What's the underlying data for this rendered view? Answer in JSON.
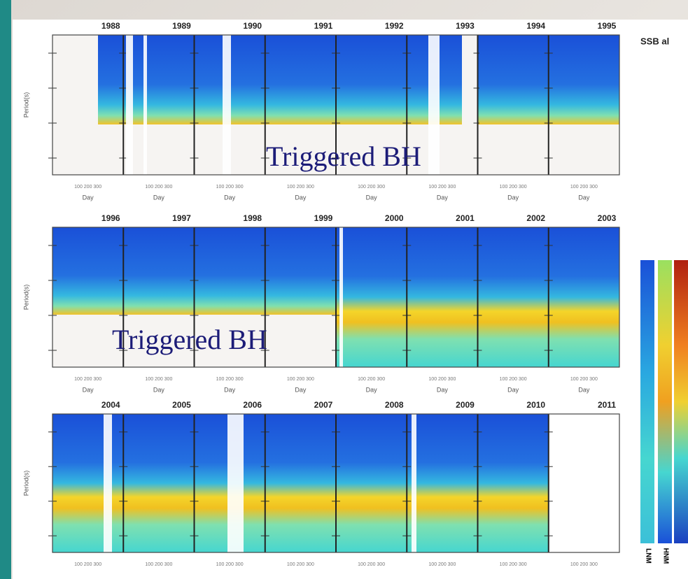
{
  "header": {
    "title": "SSB al"
  },
  "rows": [
    {
      "years": [
        "1988",
        "1989",
        "1990",
        "1991",
        "1992",
        "1993",
        "1994",
        "1995"
      ],
      "x_tick_label": "100 200 300",
      "x_label": "Day",
      "y_label": "Period(s)"
    },
    {
      "years": [
        "1996",
        "1997",
        "1998",
        "1999",
        "2000",
        "2001",
        "2002",
        "2003"
      ],
      "x_tick_label": "100 200 300",
      "x_label": "Day",
      "y_label": "Period(s)"
    },
    {
      "years": [
        "2004",
        "2005",
        "2006",
        "2007",
        "2008",
        "2009",
        "2010",
        "2011"
      ],
      "x_tick_label": "100 200 300",
      "y_label": "Period(s)"
    }
  ],
  "annotations": [
    "Triggered BH",
    "Triggered BH"
  ],
  "colorbar": {
    "labels": [
      "LNM",
      "HNM"
    ]
  }
}
